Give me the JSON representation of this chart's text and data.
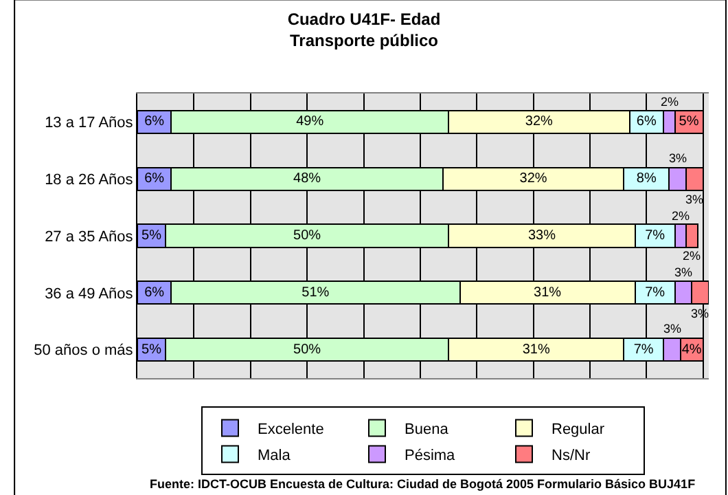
{
  "chart_data": {
    "type": "bar",
    "orientation": "horizontal",
    "stacked": true,
    "title": "Cuadro U41F- Edad\nTransporte público",
    "categories": [
      "13 a 17 Años",
      "18 a 26 Años",
      "27 a 35 Años",
      "36 a 49 Años",
      "50 años o más"
    ],
    "series": [
      {
        "name": "Excelente",
        "color": "#9999ff",
        "values": [
          6,
          6,
          5,
          6,
          5
        ],
        "value_labels": [
          "6%",
          "6%",
          "5%",
          "6%",
          "5%"
        ]
      },
      {
        "name": "Buena",
        "color": "#ccffcc",
        "values": [
          49,
          48,
          50,
          51,
          50
        ],
        "value_labels": [
          "49%",
          "48%",
          "50%",
          "51%",
          "50%"
        ]
      },
      {
        "name": "Regular",
        "color": "#ffffcc",
        "values": [
          32,
          32,
          33,
          31,
          31
        ],
        "value_labels": [
          "32%",
          "32%",
          "33%",
          "31%",
          "31%"
        ]
      },
      {
        "name": "Mala",
        "color": "#ccffff",
        "values": [
          6,
          8,
          7,
          7,
          7
        ],
        "value_labels": [
          "6%",
          "8%",
          "7%",
          "7%",
          "7%"
        ]
      },
      {
        "name": "Pésima",
        "color": "#cc99ff",
        "values": [
          2,
          3,
          2,
          3,
          3
        ],
        "value_labels": [
          "2%",
          "3%",
          "2%",
          "3%",
          "3%"
        ]
      },
      {
        "name": "Ns/Nr",
        "color": "#ff7c80",
        "values": [
          5,
          3,
          2,
          3,
          4
        ],
        "value_labels": [
          "5%",
          "3%",
          "2%",
          "3%",
          "4%"
        ]
      }
    ],
    "xlim": [
      0,
      101
    ],
    "xticks": [
      {
        "value": 0,
        "label": null
      },
      {
        "value": 10,
        "label": null
      },
      {
        "value": 20,
        "label": null
      },
      {
        "value": 30,
        "label": null
      },
      {
        "value": 40,
        "label": null
      },
      {
        "value": 50,
        "label": null
      },
      {
        "value": 60,
        "label": null
      },
      {
        "value": 70,
        "label": null
      },
      {
        "value": 80,
        "label": null
      },
      {
        "value": 90,
        "label": null
      },
      {
        "value": 100,
        "label": null
      }
    ],
    "tick_labels": "y",
    "grid": "x",
    "legend": "bottom",
    "annotations": [
      "Fuente: IDCT-OCUB Encuesta de Cultura: Ciudad de Bogotá 2005 Formulario Básico BUJ41F"
    ]
  }
}
